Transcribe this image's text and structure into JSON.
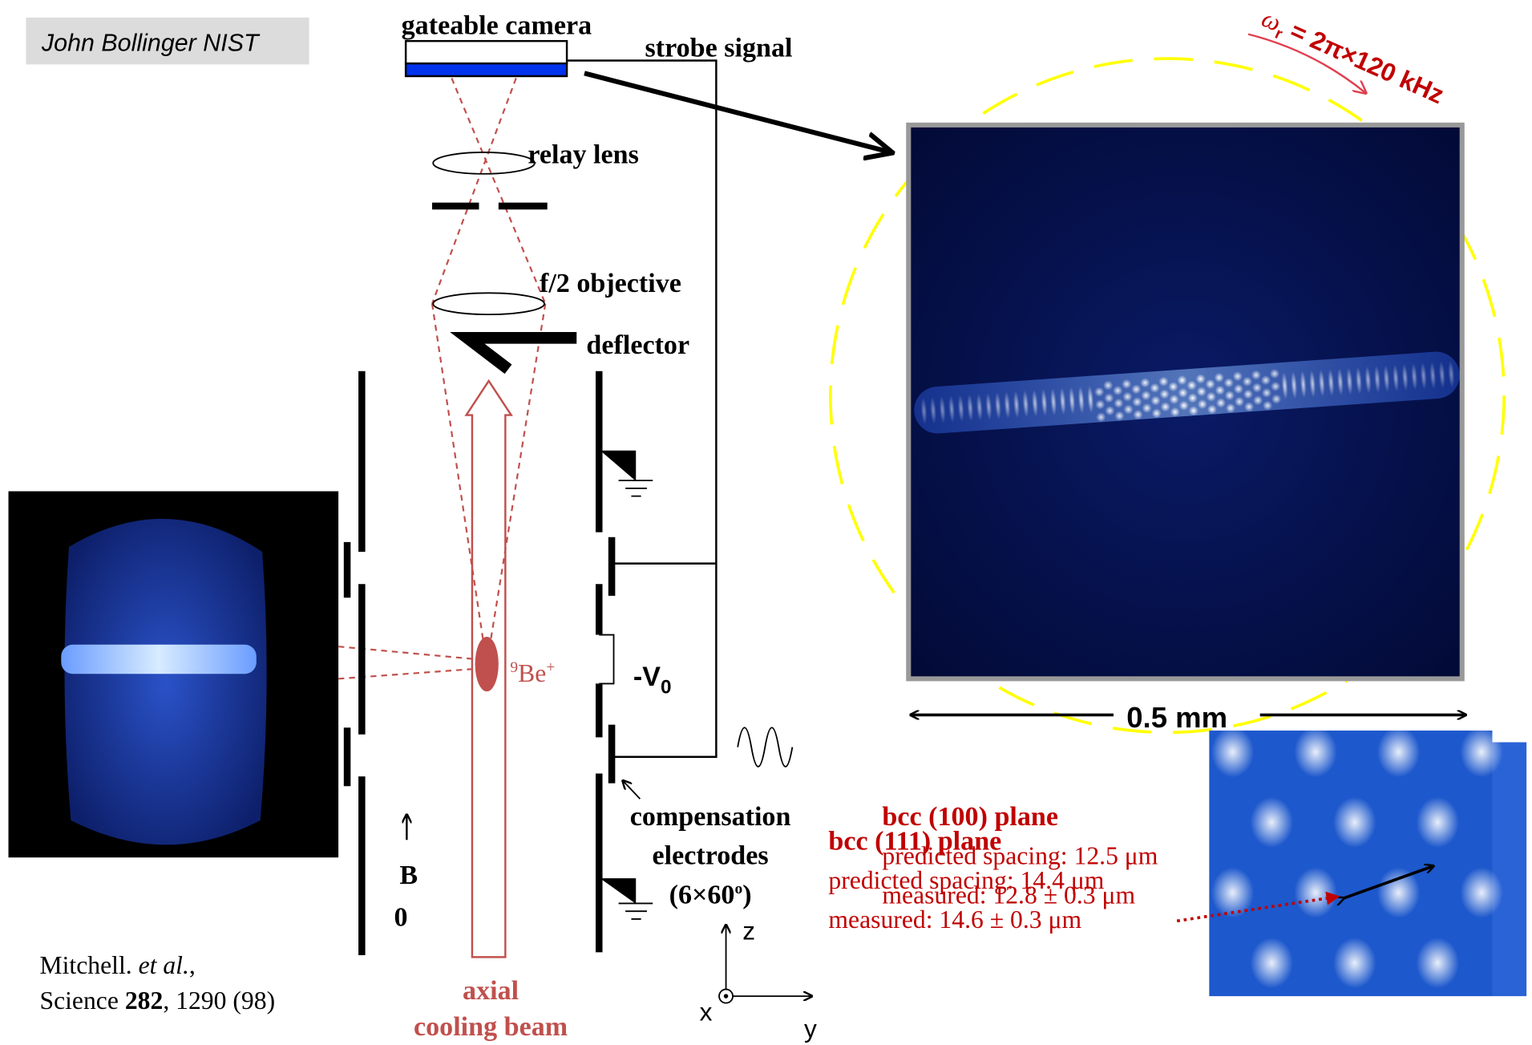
{
  "credit": "John Bollinger NIST",
  "labels": {
    "camera": "gateable camera",
    "strobe": "strobe signal",
    "relay_lens": "relay lens",
    "objective": "f/2 objective",
    "deflector": "deflector",
    "ion": {
      "mass": "9",
      "symbol": "Be",
      "charge": "+"
    },
    "voltage": {
      "main": "-V",
      "sub": "0"
    },
    "field": {
      "main": "B",
      "sub": "0"
    },
    "electrodes": {
      "line1": "compensation",
      "line2": "electrodes",
      "line3": "(6×60",
      "sup": "o",
      "close": ")"
    },
    "beam": [
      "axial",
      "cooling beam"
    ],
    "axes": {
      "z": "z",
      "x": "x",
      "y": "y"
    },
    "scale": "0.5 mm",
    "rotation": {
      "omega": "ω",
      "sub": "r",
      "rest": " = 2π×120 kHz"
    }
  },
  "citation": {
    "author": "Mitchell. ",
    "etal": "et al.",
    "comma": ",",
    "journal": "Science ",
    "volume": "282",
    "rest": ", 1290 (98)"
  },
  "bcc": [
    {
      "title": "bcc (100) plane",
      "predicted": "predicted spacing: 12.5 μm",
      "measured": "measured: 12.8 ± 0.3 μm"
    },
    {
      "title": "bcc (111) plane",
      "predicted": "predicted spacing: 14.4 μm",
      "measured": "measured: 14.6 ± 0.3 μm"
    }
  ]
}
